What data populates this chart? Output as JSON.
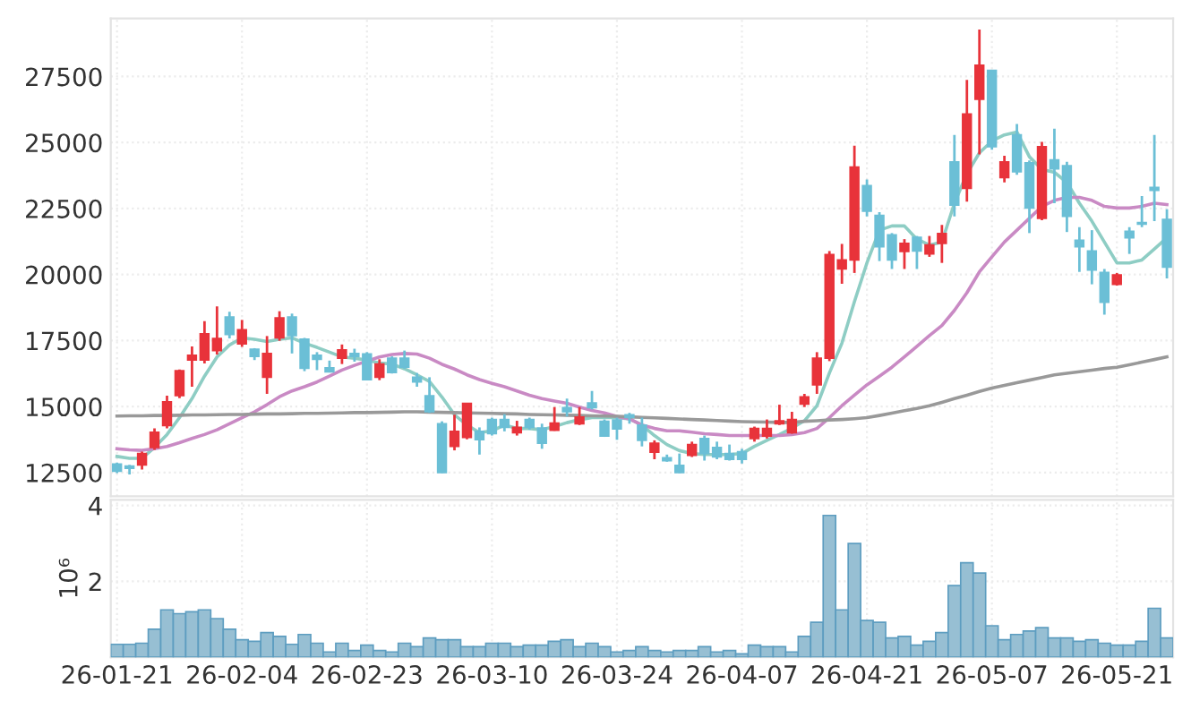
{
  "chart_data": [
    {
      "type": "candlestick",
      "categories": [
        null,
        null,
        null,
        null,
        null,
        null,
        null,
        null,
        null,
        null,
        null,
        null,
        null,
        null,
        null,
        null,
        null,
        null,
        null,
        null,
        null,
        null,
        null,
        null,
        null,
        null,
        null,
        null,
        null,
        null,
        null,
        null,
        null,
        null,
        null,
        null,
        null,
        null,
        null,
        null,
        null,
        null,
        null,
        null,
        null,
        null,
        null,
        null,
        null,
        null,
        null,
        null,
        null,
        null,
        null,
        null,
        null,
        null,
        null,
        null,
        null,
        null,
        null,
        null,
        null,
        null,
        null,
        null,
        null,
        null,
        null,
        null,
        null,
        null,
        null,
        null,
        null,
        null,
        null,
        null,
        null,
        null,
        null,
        null,
        null
      ],
      "ohlc": [
        [
          12820,
          12880,
          12480,
          12550
        ],
        [
          12750,
          12790,
          12430,
          12660
        ],
        [
          12790,
          13290,
          12610,
          13220
        ],
        [
          13450,
          14170,
          13360,
          14030
        ],
        [
          14280,
          15410,
          14170,
          15180
        ],
        [
          15410,
          16400,
          15320,
          16360
        ],
        [
          16760,
          17280,
          15750,
          16940
        ],
        [
          16760,
          18230,
          16630,
          17760
        ],
        [
          17120,
          18790,
          16970,
          17580
        ],
        [
          18390,
          18590,
          17580,
          17730
        ],
        [
          17370,
          18280,
          17260,
          17910
        ],
        [
          17170,
          17210,
          16760,
          16900
        ],
        [
          16110,
          17670,
          15480,
          17010
        ],
        [
          17600,
          18610,
          17490,
          18360
        ],
        [
          18390,
          18520,
          17010,
          17690
        ],
        [
          17550,
          17600,
          16340,
          16450
        ],
        [
          16940,
          17060,
          16380,
          16790
        ],
        [
          16470,
          16740,
          16290,
          16310
        ],
        [
          16830,
          17350,
          16610,
          17150
        ],
        [
          17010,
          17190,
          16700,
          16900
        ],
        [
          16990,
          17060,
          16000,
          16020
        ],
        [
          16110,
          16790,
          16000,
          16610
        ],
        [
          16830,
          16900,
          16250,
          16290
        ],
        [
          16830,
          17120,
          16430,
          16490
        ],
        [
          16110,
          16270,
          15750,
          15930
        ],
        [
          15410,
          16110,
          14760,
          14800
        ],
        [
          14350,
          14440,
          12480,
          12500
        ],
        [
          13490,
          14690,
          13340,
          14060
        ],
        [
          13830,
          15120,
          13760,
          15120
        ],
        [
          14060,
          14210,
          13180,
          13740
        ],
        [
          14510,
          14580,
          13900,
          13970
        ],
        [
          14510,
          14710,
          14060,
          14210
        ],
        [
          14010,
          14460,
          13900,
          14210
        ],
        [
          14510,
          14580,
          14120,
          14210
        ],
        [
          14190,
          14350,
          13400,
          13610
        ],
        [
          14100,
          14980,
          14080,
          14370
        ],
        [
          14960,
          15300,
          14620,
          14800
        ],
        [
          14350,
          14980,
          14300,
          14600
        ],
        [
          15140,
          15590,
          14890,
          14960
        ],
        [
          14440,
          14510,
          13850,
          13880
        ],
        [
          14490,
          14580,
          13740,
          14150
        ],
        [
          14690,
          14760,
          14350,
          14580
        ],
        [
          14300,
          14580,
          13490,
          13720
        ],
        [
          13270,
          13720,
          13000,
          13610
        ],
        [
          13060,
          13180,
          12910,
          12950
        ],
        [
          12770,
          13220,
          12480,
          12500
        ],
        [
          13150,
          13670,
          13090,
          13560
        ],
        [
          13790,
          13900,
          12950,
          13220
        ],
        [
          13450,
          13670,
          13000,
          13090
        ],
        [
          13220,
          13560,
          12950,
          13000
        ],
        [
          13290,
          13400,
          12840,
          13000
        ],
        [
          13790,
          14240,
          13670,
          14170
        ],
        [
          13880,
          14510,
          13790,
          14170
        ],
        [
          14350,
          15070,
          14300,
          14460
        ],
        [
          14010,
          14800,
          13970,
          14510
        ],
        [
          15090,
          15480,
          14980,
          15370
        ],
        [
          15820,
          17060,
          15480,
          16830
        ],
        [
          16830,
          20890,
          16720,
          20760
        ],
        [
          20210,
          21160,
          19650,
          20550
        ],
        [
          20550,
          24880,
          20060,
          24070
        ],
        [
          23370,
          23600,
          22200,
          22400
        ],
        [
          22240,
          22360,
          20510,
          21050
        ],
        [
          21500,
          21570,
          20210,
          20550
        ],
        [
          20870,
          21340,
          20210,
          21180
        ],
        [
          21410,
          21460,
          20210,
          20890
        ],
        [
          20780,
          21460,
          20670,
          21120
        ],
        [
          21180,
          21880,
          20440,
          21550
        ],
        [
          24270,
          25290,
          22200,
          22630
        ],
        [
          23260,
          27370,
          22760,
          26080
        ],
        [
          26640,
          29280,
          24550,
          27930
        ],
        [
          27730,
          27750,
          24730,
          24840
        ],
        [
          23670,
          24500,
          23490,
          24270
        ],
        [
          25290,
          25700,
          23780,
          23890
        ],
        [
          24230,
          24320,
          21570,
          22520
        ],
        [
          22130,
          25020,
          22060,
          24840
        ],
        [
          24340,
          25520,
          22700,
          24000
        ],
        [
          24120,
          24270,
          21610,
          22200
        ],
        [
          21300,
          21790,
          20100,
          21050
        ],
        [
          20890,
          21680,
          19630,
          20170
        ],
        [
          20080,
          20210,
          18480,
          18950
        ],
        [
          19630,
          20060,
          19580,
          19990
        ],
        [
          21640,
          21790,
          20780,
          21390
        ],
        [
          21970,
          22970,
          21790,
          21910
        ],
        [
          23300,
          25290,
          22020,
          23190
        ],
        [
          22090,
          22470,
          19850,
          20280
        ]
      ],
      "colors": [
        "#6bbfd6",
        "#6bbfd6",
        "#e8333a",
        "#e8333a",
        "#e8333a",
        "#e8333a",
        "#e8333a",
        "#e8333a",
        "#e8333a",
        "#6bbfd6",
        "#e8333a",
        "#6bbfd6",
        "#e8333a",
        "#e8333a",
        "#6bbfd6",
        "#6bbfd6",
        "#6bbfd6",
        "#6bbfd6",
        "#e8333a",
        "#6bbfd6",
        "#6bbfd6",
        "#e8333a",
        "#6bbfd6",
        "#6bbfd6",
        "#6bbfd6",
        "#6bbfd6",
        "#6bbfd6",
        "#e8333a",
        "#e8333a",
        "#6bbfd6",
        "#6bbfd6",
        "#6bbfd6",
        "#e8333a",
        "#6bbfd6",
        "#6bbfd6",
        "#e8333a",
        "#6bbfd6",
        "#e8333a",
        "#6bbfd6",
        "#6bbfd6",
        "#6bbfd6",
        "#6bbfd6",
        "#6bbfd6",
        "#e8333a",
        "#6bbfd6",
        "#6bbfd6",
        "#e8333a",
        "#6bbfd6",
        "#6bbfd6",
        "#6bbfd6",
        "#6bbfd6",
        "#e8333a",
        "#e8333a",
        "#e8333a",
        "#e8333a",
        "#e8333a",
        "#e8333a",
        "#e8333a",
        "#e8333a",
        "#e8333a",
        "#6bbfd6",
        "#6bbfd6",
        "#6bbfd6",
        "#e8333a",
        "#6bbfd6",
        "#e8333a",
        "#e8333a",
        "#6bbfd6",
        "#e8333a",
        "#e8333a",
        "#6bbfd6",
        "#e8333a",
        "#6bbfd6",
        "#6bbfd6",
        "#e8333a",
        "#6bbfd6",
        "#6bbfd6",
        "#6bbfd6",
        "#6bbfd6",
        "#6bbfd6",
        "#e8333a",
        "#6bbfd6",
        "#6bbfd6",
        "#6bbfd6",
        "#6bbfd6"
      ],
      "series": [
        {
          "type": "line",
          "color": "#8ecdc4",
          "values": [
            13110,
            13040,
            13040,
            13450,
            13940,
            14580,
            15300,
            16150,
            16880,
            17330,
            17600,
            17550,
            17460,
            17550,
            17600,
            17400,
            17240,
            17060,
            16880,
            16830,
            16760,
            16650,
            16610,
            16430,
            16200,
            15950,
            15360,
            14690,
            14300,
            14010,
            14080,
            14300,
            14170,
            14170,
            14120,
            14240,
            14390,
            14500,
            14580,
            14580,
            14580,
            14530,
            14300,
            13900,
            13560,
            13330,
            13220,
            13180,
            13180,
            13180,
            13220,
            13490,
            13720,
            13940,
            14180,
            14460,
            15030,
            16270,
            17400,
            18970,
            20440,
            21680,
            21840,
            21840,
            21340,
            21120,
            21230,
            22700,
            23820,
            24610,
            25060,
            25290,
            25400,
            24460,
            23980,
            23870,
            23490,
            22700,
            22020,
            21230,
            20440,
            20440,
            20550,
            20970,
            21390
          ]
        },
        {
          "type": "line",
          "color": "#c98ac4",
          "values": [
            13400,
            13360,
            13340,
            13400,
            13490,
            13630,
            13790,
            13940,
            14120,
            14350,
            14580,
            14800,
            15070,
            15370,
            15590,
            15750,
            15930,
            16150,
            16380,
            16560,
            16720,
            16880,
            16970,
            17010,
            16990,
            16830,
            16600,
            16420,
            16200,
            16020,
            15880,
            15750,
            15590,
            15430,
            15300,
            15210,
            15120,
            14980,
            14850,
            14760,
            14620,
            14530,
            14300,
            14170,
            14080,
            14080,
            14030,
            13970,
            13940,
            13900,
            13900,
            13900,
            13900,
            13900,
            13940,
            14010,
            14170,
            14580,
            15030,
            15430,
            15820,
            16150,
            16490,
            16880,
            17280,
            17690,
            18070,
            18640,
            19310,
            20100,
            20670,
            21230,
            21680,
            22130,
            22580,
            22810,
            22920,
            22920,
            22810,
            22580,
            22520,
            22520,
            22580,
            22700,
            22650
          ]
        },
        {
          "type": "line",
          "color": "#999999",
          "values": [
            14640,
            14650,
            14650,
            14660,
            14660,
            14670,
            14680,
            14680,
            14690,
            14700,
            14700,
            14710,
            14720,
            14720,
            14730,
            14740,
            14740,
            14750,
            14760,
            14770,
            14770,
            14780,
            14790,
            14800,
            14800,
            14790,
            14780,
            14770,
            14760,
            14750,
            14740,
            14730,
            14720,
            14700,
            14690,
            14680,
            14670,
            14660,
            14650,
            14640,
            14630,
            14610,
            14590,
            14570,
            14550,
            14530,
            14510,
            14490,
            14470,
            14450,
            14430,
            14420,
            14410,
            14400,
            14400,
            14440,
            14460,
            14490,
            14510,
            14540,
            14580,
            14660,
            14750,
            14840,
            14930,
            15030,
            15160,
            15300,
            15430,
            15570,
            15700,
            15800,
            15900,
            16000,
            16100,
            16200,
            16260,
            16320,
            16380,
            16440,
            16490,
            16580,
            16680,
            16780,
            16880
          ]
        }
      ],
      "ylim": [
        11600,
        29700
      ],
      "yticks": [
        12500,
        15000,
        17500,
        20000,
        22500,
        25000,
        27500
      ],
      "grid": true,
      "tick_labels": "y"
    },
    {
      "type": "bar",
      "categories": [
        "26-01-21",
        null,
        null,
        null,
        null,
        null,
        null,
        null,
        null,
        null,
        "26-02-04",
        null,
        null,
        null,
        null,
        null,
        null,
        null,
        null,
        null,
        "26-02-23",
        null,
        null,
        null,
        null,
        null,
        null,
        null,
        null,
        null,
        "26-03-10",
        null,
        null,
        null,
        null,
        null,
        null,
        null,
        null,
        null,
        "26-03-24",
        null,
        null,
        null,
        null,
        null,
        null,
        null,
        null,
        null,
        "26-04-07",
        null,
        null,
        null,
        null,
        null,
        null,
        null,
        null,
        null,
        "26-04-21",
        null,
        null,
        null,
        null,
        null,
        null,
        null,
        null,
        null,
        "26-05-07",
        null,
        null,
        null,
        null,
        null,
        null,
        null,
        null,
        null,
        "26-05-21",
        null,
        null,
        null,
        null
      ],
      "values": [
        0.34,
        0.34,
        0.37,
        0.74,
        1.25,
        1.15,
        1.2,
        1.25,
        1.02,
        0.74,
        0.46,
        0.42,
        0.65,
        0.55,
        0.34,
        0.6,
        0.37,
        0.14,
        0.37,
        0.18,
        0.32,
        0.18,
        0.14,
        0.37,
        0.28,
        0.51,
        0.46,
        0.46,
        0.28,
        0.28,
        0.37,
        0.37,
        0.28,
        0.32,
        0.32,
        0.42,
        0.46,
        0.28,
        0.37,
        0.28,
        0.14,
        0.18,
        0.28,
        0.18,
        0.14,
        0.18,
        0.18,
        0.28,
        0.14,
        0.18,
        0.09,
        0.32,
        0.28,
        0.28,
        0.14,
        0.55,
        0.92,
        3.74,
        1.25,
        3.0,
        0.97,
        0.92,
        0.51,
        0.55,
        0.32,
        0.42,
        0.65,
        1.89,
        2.49,
        2.22,
        0.83,
        0.46,
        0.6,
        0.69,
        0.78,
        0.51,
        0.51,
        0.42,
        0.46,
        0.37,
        0.32,
        0.32,
        0.42,
        1.29,
        0.51
      ],
      "color": "#97bfd3",
      "ylabel": "10⁶",
      "ylim": [
        0,
        4.15
      ],
      "yticks": [
        2,
        4
      ],
      "grid": true
    }
  ]
}
